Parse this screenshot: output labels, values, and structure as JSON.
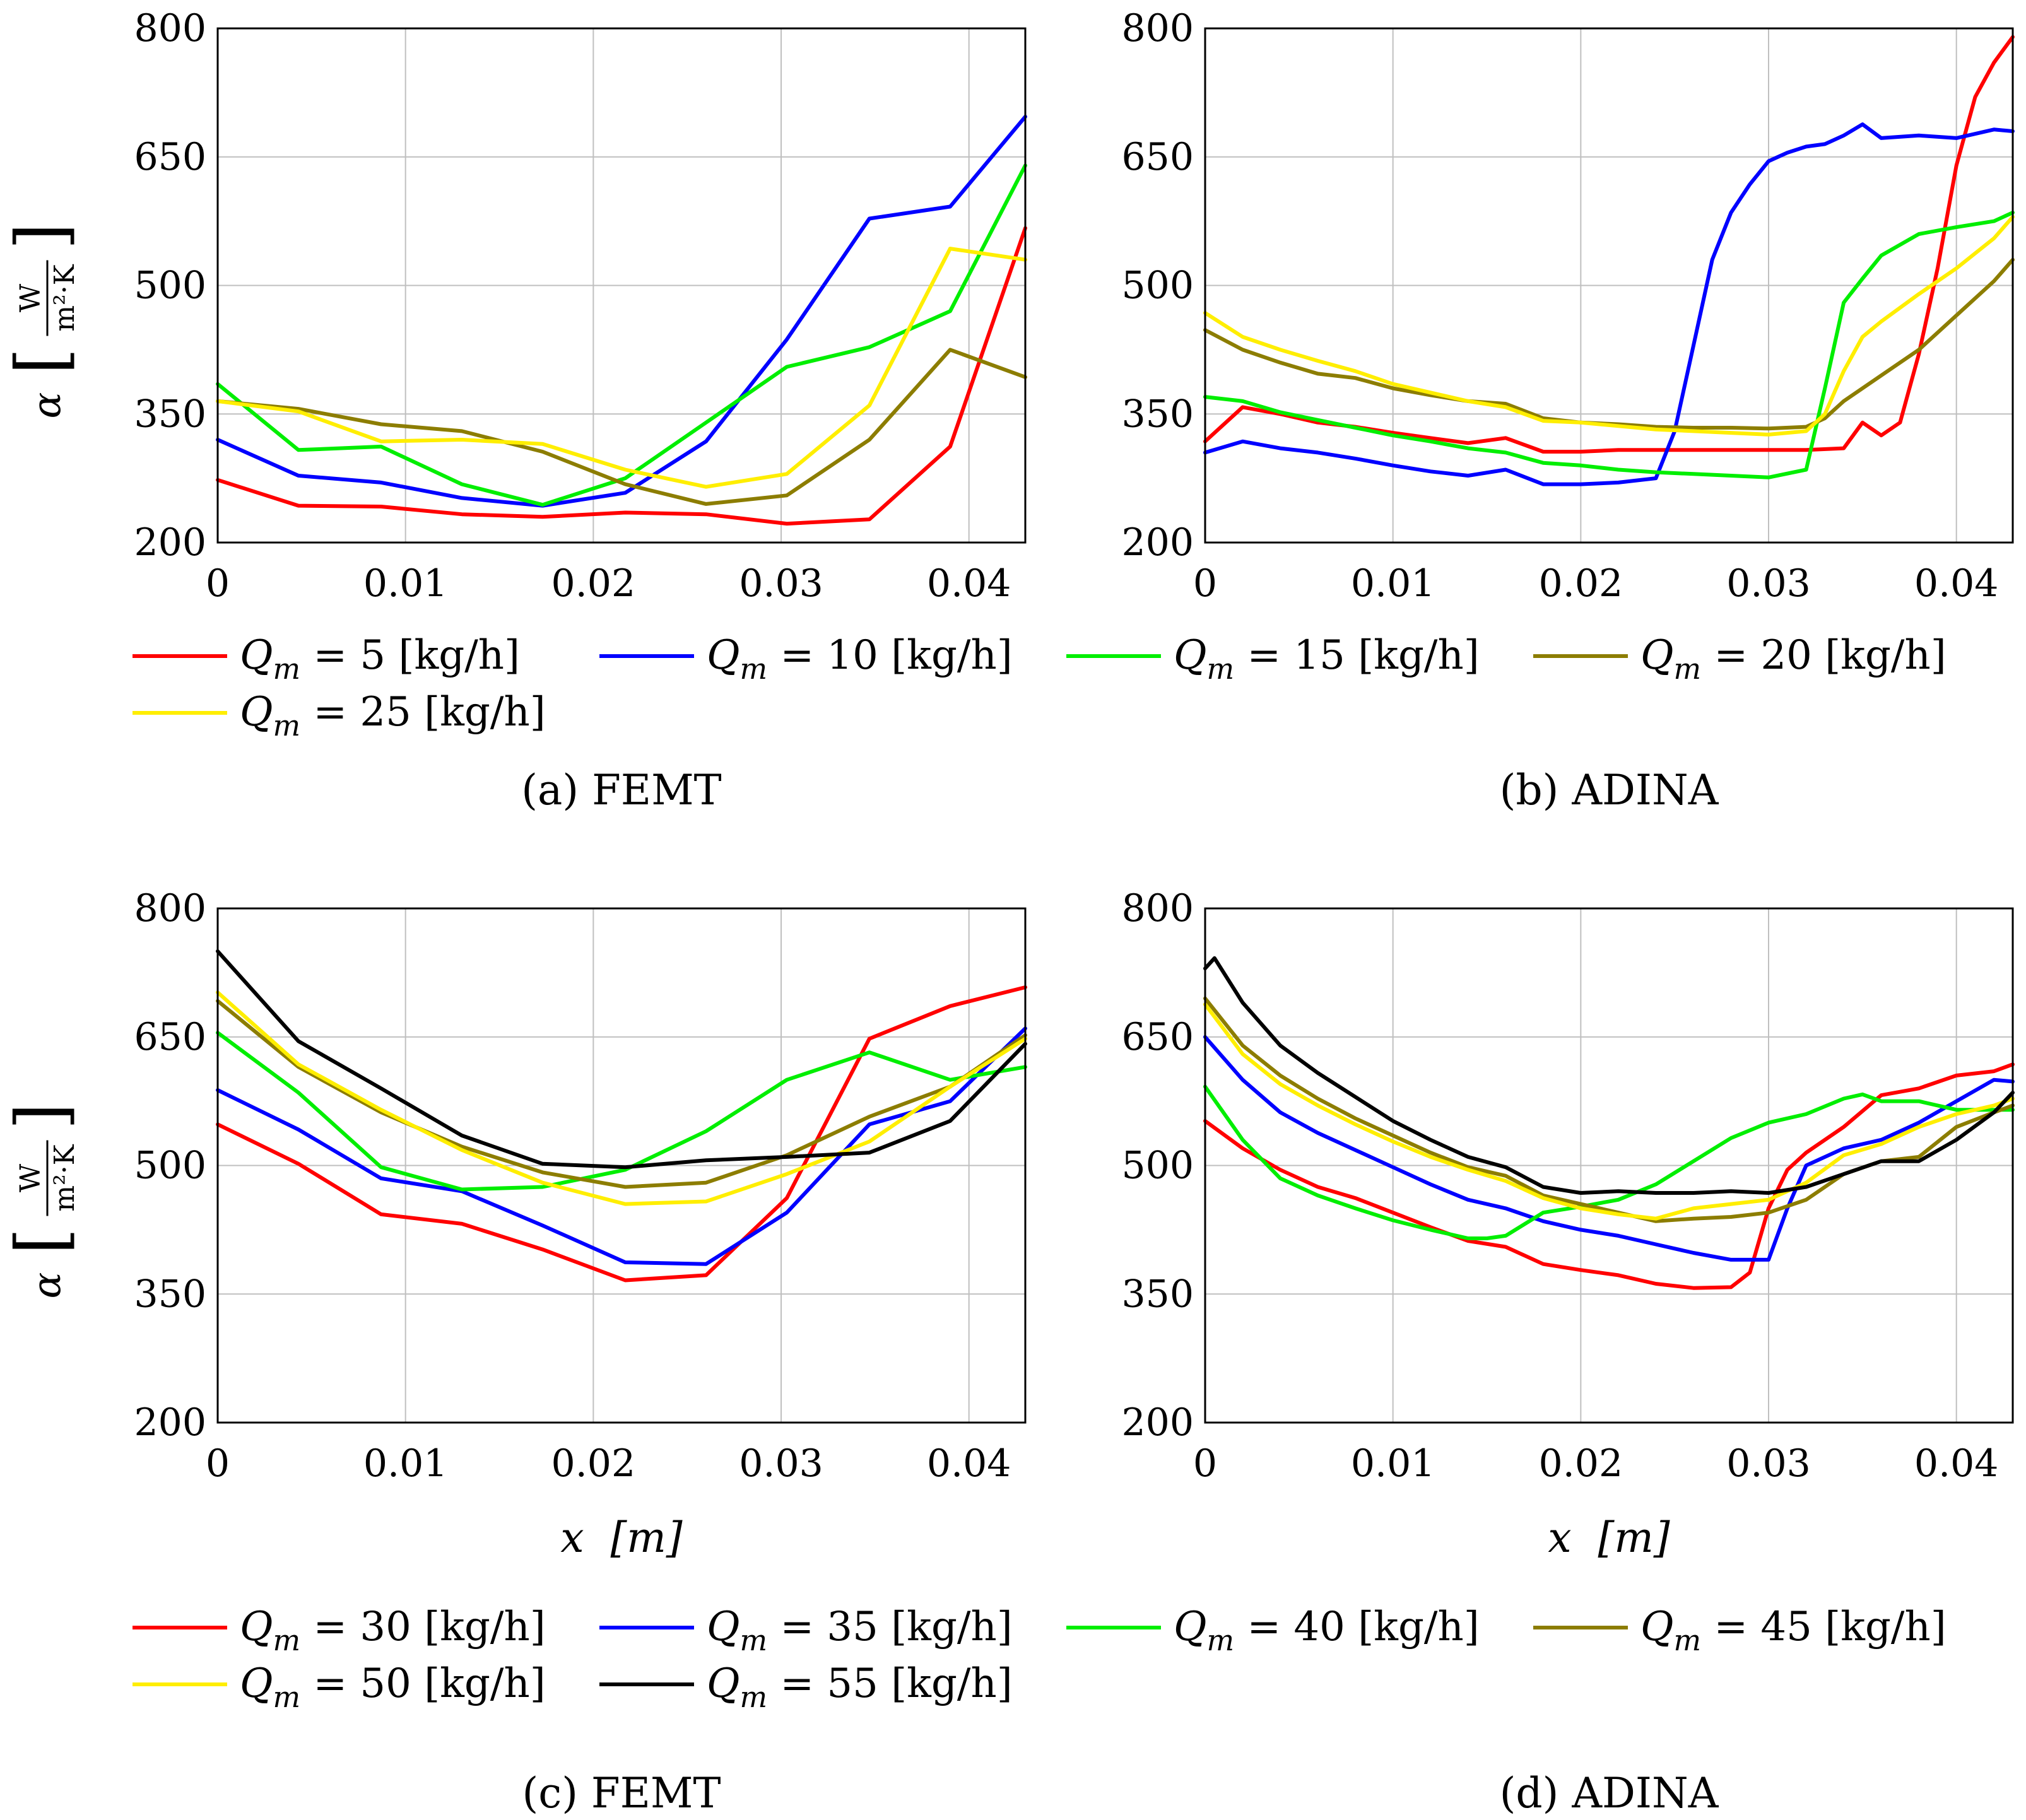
{
  "legend_unit": "[kg/h]",
  "legend_prefix": "Q",
  "legend_subscript": "m",
  "colors": {
    "red": "#ff0000",
    "blue": "#0000ff",
    "green": "#00ee00",
    "olive": "#8c7d00",
    "yellow": "#ffee00",
    "black": "#000000",
    "grid": "#bfbfbf"
  },
  "chart_data": [
    {
      "id": "a",
      "type": "line",
      "caption": "(a) FEMT",
      "xlabel": "",
      "ylabel_symbol": "α",
      "ylabel_unit_num": "W",
      "ylabel_unit_den": "m²·K",
      "xlim": [
        0,
        0.043
      ],
      "ylim": [
        200,
        800
      ],
      "xticks": [
        "0",
        "0.01",
        "0.02",
        "0.03",
        "0.04"
      ],
      "yticks": [
        "200",
        "350",
        "500",
        "650",
        "800"
      ],
      "grid": true,
      "series": [
        {
          "name": "Q_m = 5 [kg/h]",
          "value": "5",
          "color": "red",
          "x": [
            0,
            0.0043,
            0.0087,
            0.013,
            0.0173,
            0.0217,
            0.026,
            0.0303,
            0.0347,
            0.039,
            0.043
          ],
          "y": [
            273,
            243,
            242,
            233,
            230,
            235,
            233,
            222,
            227,
            312,
            567
          ]
        },
        {
          "name": "Q_m = 10 [kg/h]",
          "value": "10",
          "color": "blue",
          "x": [
            0,
            0.0043,
            0.0087,
            0.013,
            0.0173,
            0.0217,
            0.026,
            0.0303,
            0.0347,
            0.039,
            0.043
          ],
          "y": [
            320,
            278,
            270,
            252,
            243,
            258,
            318,
            437,
            578,
            592,
            697
          ]
        },
        {
          "name": "Q_m = 15 [kg/h]",
          "value": "15",
          "color": "green",
          "x": [
            0,
            0.0043,
            0.0087,
            0.013,
            0.0173,
            0.0217,
            0.026,
            0.0303,
            0.0347,
            0.039,
            0.043
          ],
          "y": [
            385,
            308,
            312,
            268,
            244,
            275,
            340,
            405,
            428,
            470,
            640
          ]
        },
        {
          "name": "Q_m = 20 [kg/h]",
          "value": "20",
          "color": "olive",
          "x": [
            0,
            0.0043,
            0.0087,
            0.013,
            0.0173,
            0.0217,
            0.026,
            0.0303,
            0.0347,
            0.039,
            0.043
          ],
          "y": [
            365,
            356,
            338,
            330,
            306,
            268,
            245,
            255,
            320,
            425,
            393
          ]
        },
        {
          "name": "Q_m = 25 [kg/h]",
          "value": "25",
          "color": "yellow",
          "x": [
            0,
            0.0043,
            0.0087,
            0.013,
            0.0173,
            0.0217,
            0.026,
            0.0303,
            0.0347,
            0.039,
            0.043
          ],
          "y": [
            365,
            353,
            318,
            320,
            315,
            285,
            265,
            280,
            360,
            543,
            530
          ]
        }
      ]
    },
    {
      "id": "b",
      "type": "line",
      "caption": "(b) ADINA",
      "xlabel": "",
      "ylabel_symbol": "",
      "xlim": [
        0,
        0.043
      ],
      "ylim": [
        200,
        800
      ],
      "xticks": [
        "0",
        "0.01",
        "0.02",
        "0.03",
        "0.04"
      ],
      "yticks": [
        "200",
        "350",
        "500",
        "650",
        "800"
      ],
      "grid": true,
      "series": [
        {
          "name": "Q_m = 5 [kg/h]",
          "color": "red",
          "x": [
            0,
            0.002,
            0.004,
            0.006,
            0.008,
            0.01,
            0.012,
            0.014,
            0.016,
            0.018,
            0.02,
            0.022,
            0.024,
            0.026,
            0.028,
            0.03,
            0.032,
            0.034,
            0.035,
            0.036,
            0.037,
            0.038,
            0.039,
            0.04,
            0.041,
            0.042,
            0.043
          ],
          "y": [
            318,
            358,
            350,
            340,
            335,
            328,
            322,
            316,
            322,
            306,
            306,
            308,
            308,
            308,
            308,
            308,
            308,
            310,
            340,
            325,
            340,
            420,
            520,
            640,
            720,
            760,
            790
          ]
        },
        {
          "name": "Q_m = 10 [kg/h]",
          "color": "blue",
          "x": [
            0,
            0.002,
            0.004,
            0.006,
            0.008,
            0.01,
            0.012,
            0.014,
            0.016,
            0.018,
            0.02,
            0.022,
            0.024,
            0.025,
            0.026,
            0.027,
            0.028,
            0.029,
            0.03,
            0.031,
            0.032,
            0.033,
            0.034,
            0.035,
            0.036,
            0.038,
            0.04,
            0.042,
            0.043
          ],
          "y": [
            305,
            318,
            310,
            305,
            298,
            290,
            283,
            278,
            285,
            268,
            268,
            270,
            275,
            330,
            430,
            530,
            585,
            618,
            645,
            655,
            662,
            665,
            675,
            688,
            672,
            675,
            672,
            682,
            680
          ]
        },
        {
          "name": "Q_m = 15 [kg/h]",
          "color": "green",
          "x": [
            0,
            0.002,
            0.004,
            0.006,
            0.008,
            0.01,
            0.012,
            0.014,
            0.016,
            0.018,
            0.02,
            0.022,
            0.024,
            0.026,
            0.028,
            0.03,
            0.032,
            0.033,
            0.034,
            0.035,
            0.036,
            0.038,
            0.04,
            0.042,
            0.043
          ],
          "y": [
            370,
            365,
            352,
            343,
            334,
            325,
            318,
            310,
            305,
            293,
            290,
            285,
            282,
            280,
            278,
            276,
            285,
            380,
            480,
            508,
            535,
            560,
            568,
            575,
            585
          ]
        },
        {
          "name": "Q_m = 20 [kg/h]",
          "color": "olive",
          "x": [
            0,
            0.002,
            0.004,
            0.006,
            0.008,
            0.01,
            0.012,
            0.014,
            0.016,
            0.018,
            0.02,
            0.022,
            0.024,
            0.026,
            0.028,
            0.03,
            0.032,
            0.033,
            0.034,
            0.036,
            0.038,
            0.04,
            0.042,
            0.043
          ],
          "y": [
            448,
            425,
            410,
            397,
            392,
            380,
            372,
            365,
            362,
            345,
            340,
            338,
            335,
            334,
            334,
            333,
            335,
            345,
            365,
            395,
            425,
            465,
            505,
            530
          ]
        },
        {
          "name": "Q_m = 25 [kg/h]",
          "color": "yellow",
          "x": [
            0,
            0.002,
            0.004,
            0.006,
            0.008,
            0.01,
            0.012,
            0.014,
            0.016,
            0.018,
            0.02,
            0.022,
            0.024,
            0.026,
            0.028,
            0.03,
            0.032,
            0.033,
            0.034,
            0.035,
            0.036,
            0.038,
            0.04,
            0.042,
            0.043
          ],
          "y": [
            468,
            440,
            425,
            412,
            400,
            385,
            375,
            365,
            358,
            342,
            340,
            336,
            332,
            330,
            328,
            326,
            330,
            350,
            400,
            440,
            458,
            490,
            520,
            555,
            580
          ]
        }
      ]
    },
    {
      "id": "c",
      "type": "line",
      "caption": "(c) FEMT",
      "xlabel": "x  [m]",
      "ylabel_symbol": "α",
      "ylabel_unit_num": "W",
      "ylabel_unit_den": "m²·K",
      "xlim": [
        0,
        0.043
      ],
      "ylim": [
        200,
        800
      ],
      "xticks": [
        "0",
        "0.01",
        "0.02",
        "0.03",
        "0.04"
      ],
      "yticks": [
        "200",
        "350",
        "500",
        "650",
        "800"
      ],
      "grid": true,
      "series": [
        {
          "name": "Q_m = 30 [kg/h]",
          "value": "30",
          "color": "red",
          "x": [
            0,
            0.0043,
            0.0087,
            0.013,
            0.0173,
            0.0217,
            0.026,
            0.0303,
            0.0347,
            0.039,
            0.043
          ],
          "y": [
            548,
            502,
            443,
            432,
            402,
            366,
            372,
            462,
            648,
            686,
            708
          ]
        },
        {
          "name": "Q_m = 35 [kg/h]",
          "value": "35",
          "color": "blue",
          "x": [
            0,
            0.0043,
            0.0087,
            0.013,
            0.0173,
            0.0217,
            0.026,
            0.0303,
            0.0347,
            0.039,
            0.043
          ],
          "y": [
            588,
            542,
            485,
            470,
            430,
            387,
            385,
            445,
            548,
            575,
            660
          ]
        },
        {
          "name": "Q_m = 40 [kg/h]",
          "value": "40",
          "color": "green",
          "x": [
            0,
            0.0043,
            0.0087,
            0.013,
            0.0173,
            0.0217,
            0.026,
            0.0303,
            0.0347,
            0.039,
            0.043
          ],
          "y": [
            655,
            585,
            498,
            472,
            475,
            495,
            540,
            600,
            632,
            600,
            615
          ]
        },
        {
          "name": "Q_m = 45 [kg/h]",
          "value": "45",
          "color": "olive",
          "x": [
            0,
            0.0043,
            0.0087,
            0.013,
            0.0173,
            0.0217,
            0.026,
            0.0303,
            0.0347,
            0.039,
            0.043
          ],
          "y": [
            692,
            615,
            562,
            522,
            492,
            475,
            480,
            512,
            557,
            592,
            652
          ]
        },
        {
          "name": "Q_m = 50 [kg/h]",
          "value": "50",
          "color": "yellow",
          "x": [
            0,
            0.0043,
            0.0087,
            0.013,
            0.0173,
            0.0217,
            0.026,
            0.0303,
            0.0347,
            0.039,
            0.043
          ],
          "y": [
            702,
            618,
            565,
            518,
            480,
            455,
            458,
            490,
            528,
            592,
            648
          ]
        },
        {
          "name": "Q_m = 55 [kg/h]",
          "value": "55",
          "color": "black",
          "x": [
            0,
            0.0043,
            0.0087,
            0.013,
            0.0173,
            0.0217,
            0.026,
            0.0303,
            0.0347,
            0.039,
            0.043
          ],
          "y": [
            750,
            645,
            590,
            535,
            502,
            498,
            506,
            510,
            515,
            552,
            642
          ]
        }
      ]
    },
    {
      "id": "d",
      "type": "line",
      "caption": "(d) ADINA",
      "xlabel": "x  [m]",
      "ylabel_symbol": "",
      "xlim": [
        0,
        0.043
      ],
      "ylim": [
        200,
        800
      ],
      "xticks": [
        "0",
        "0.01",
        "0.02",
        "0.03",
        "0.04"
      ],
      "yticks": [
        "200",
        "350",
        "500",
        "650",
        "800"
      ],
      "grid": true,
      "series": [
        {
          "name": "Q_m = 30 [kg/h]",
          "color": "red",
          "x": [
            0,
            0.002,
            0.004,
            0.006,
            0.008,
            0.01,
            0.012,
            0.014,
            0.016,
            0.018,
            0.02,
            0.022,
            0.024,
            0.026,
            0.028,
            0.029,
            0.03,
            0.031,
            0.032,
            0.034,
            0.036,
            0.038,
            0.04,
            0.042,
            0.043
          ],
          "y": [
            552,
            520,
            495,
            475,
            462,
            445,
            428,
            412,
            405,
            385,
            378,
            372,
            362,
            357,
            358,
            375,
            450,
            495,
            515,
            545,
            582,
            590,
            605,
            610,
            618
          ]
        },
        {
          "name": "Q_m = 35 [kg/h]",
          "color": "blue",
          "x": [
            0,
            0.002,
            0.004,
            0.006,
            0.008,
            0.01,
            0.012,
            0.014,
            0.016,
            0.018,
            0.02,
            0.022,
            0.024,
            0.026,
            0.028,
            0.03,
            0.031,
            0.032,
            0.034,
            0.036,
            0.038,
            0.04,
            0.042,
            0.043
          ],
          "y": [
            650,
            600,
            562,
            538,
            518,
            498,
            478,
            460,
            450,
            435,
            425,
            418,
            408,
            398,
            390,
            390,
            450,
            500,
            520,
            530,
            550,
            575,
            600,
            598
          ]
        },
        {
          "name": "Q_m = 40 [kg/h]",
          "color": "green",
          "x": [
            0,
            0.002,
            0.004,
            0.006,
            0.008,
            0.01,
            0.012,
            0.014,
            0.015,
            0.016,
            0.018,
            0.02,
            0.022,
            0.024,
            0.026,
            0.028,
            0.03,
            0.032,
            0.034,
            0.035,
            0.036,
            0.038,
            0.04,
            0.042,
            0.043
          ],
          "y": [
            592,
            530,
            485,
            465,
            450,
            436,
            425,
            415,
            415,
            418,
            445,
            452,
            460,
            478,
            505,
            532,
            550,
            560,
            578,
            583,
            575,
            575,
            565,
            565,
            565
          ]
        },
        {
          "name": "Q_m = 45 [kg/h]",
          "color": "olive",
          "x": [
            0,
            0.002,
            0.004,
            0.006,
            0.008,
            0.01,
            0.012,
            0.014,
            0.016,
            0.018,
            0.02,
            0.022,
            0.024,
            0.026,
            0.028,
            0.03,
            0.032,
            0.034,
            0.036,
            0.038,
            0.04,
            0.042,
            0.043
          ],
          "y": [
            695,
            640,
            605,
            578,
            555,
            535,
            515,
            498,
            488,
            465,
            455,
            445,
            435,
            438,
            440,
            445,
            460,
            490,
            505,
            510,
            545,
            562,
            570
          ]
        },
        {
          "name": "Q_m = 50 [kg/h]",
          "color": "yellow",
          "x": [
            0,
            0.002,
            0.004,
            0.006,
            0.008,
            0.01,
            0.012,
            0.014,
            0.016,
            0.018,
            0.02,
            0.022,
            0.024,
            0.026,
            0.028,
            0.03,
            0.032,
            0.034,
            0.036,
            0.038,
            0.04,
            0.042,
            0.043
          ],
          "y": [
            688,
            630,
            595,
            570,
            548,
            528,
            510,
            495,
            482,
            462,
            450,
            443,
            438,
            450,
            455,
            460,
            480,
            512,
            525,
            545,
            560,
            570,
            578
          ]
        },
        {
          "name": "Q_m = 55 [kg/h]",
          "color": "black",
          "x": [
            0,
            0.0005,
            0.002,
            0.004,
            0.006,
            0.008,
            0.01,
            0.012,
            0.014,
            0.016,
            0.018,
            0.02,
            0.022,
            0.024,
            0.026,
            0.028,
            0.03,
            0.032,
            0.034,
            0.036,
            0.038,
            0.04,
            0.042,
            0.043
          ],
          "y": [
            730,
            742,
            690,
            640,
            608,
            580,
            552,
            530,
            510,
            498,
            475,
            468,
            470,
            468,
            468,
            470,
            468,
            475,
            490,
            505,
            505,
            530,
            562,
            585
          ]
        }
      ]
    }
  ]
}
